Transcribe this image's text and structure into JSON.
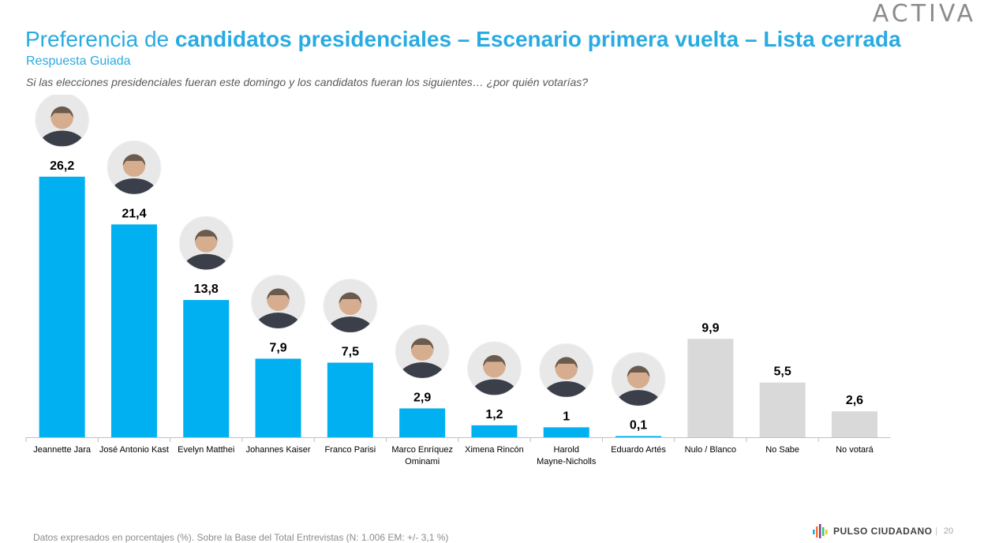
{
  "header": {
    "logo": "ACTIVA",
    "title_plain": "Preferencia de ",
    "title_bold": "candidatos presidenciales – Escenario primera vuelta – Lista cerrada",
    "subtitle": "Respuesta Guiada",
    "question": "Si las elecciones presidenciales fueran este domingo y los candidatos fueran los siguientes… ¿por quién votarías?"
  },
  "chart_data": {
    "type": "bar",
    "categories": [
      "Jeannette Jara",
      "José Antonio Kast",
      "Evelyn Matthei",
      "Johannes Kaiser",
      "Franco Parisi",
      "Marco Enríquez Ominami",
      "Ximena Rincón",
      "Harold Mayne-Nicholls",
      "Eduardo Artés",
      "Nulo / Blanco",
      "No Sabe",
      "No votará"
    ],
    "category_lines": [
      [
        "Jeannette Jara"
      ],
      [
        "José Antonio Kast"
      ],
      [
        "Evelyn Matthei"
      ],
      [
        "Johannes Kaiser"
      ],
      [
        "Franco Parisi"
      ],
      [
        "Marco Enríquez",
        "Ominami"
      ],
      [
        "Ximena Rincón"
      ],
      [
        "Harold",
        "Mayne-Nicholls"
      ],
      [
        "Eduardo Artés"
      ],
      [
        "Nulo / Blanco"
      ],
      [
        "No Sabe"
      ],
      [
        "No votará"
      ]
    ],
    "values": [
      26.2,
      21.4,
      13.8,
      7.9,
      7.5,
      2.9,
      1.2,
      1,
      0.1,
      9.9,
      5.5,
      2.6
    ],
    "value_labels": [
      "26,2",
      "21,4",
      "13,8",
      "7,9",
      "7,5",
      "2,9",
      "1,2",
      "1",
      "0,1",
      "9,9",
      "5,5",
      "2,6"
    ],
    "has_photo": [
      true,
      true,
      true,
      true,
      true,
      true,
      true,
      true,
      true,
      false,
      false,
      false
    ],
    "bar_colors": [
      "#00b0f0",
      "#00b0f0",
      "#00b0f0",
      "#00b0f0",
      "#00b0f0",
      "#00b0f0",
      "#00b0f0",
      "#00b0f0",
      "#00b0f0",
      "#d9d9d9",
      "#d9d9d9",
      "#d9d9d9"
    ],
    "ylim": [
      0,
      28
    ],
    "grid": false,
    "legend": "none"
  },
  "footer": {
    "note": "Datos expresados en porcentajes (%). Sobre la Base del Total Entrevistas (N: 1.006  EM: +/- 3,1 %)",
    "brand": "PULSO CIUDADANO",
    "separator": "|",
    "page": "20"
  },
  "colors": {
    "accent": "#29abe2",
    "candidate_bar": "#00b0f0",
    "other_bar": "#d9d9d9"
  }
}
